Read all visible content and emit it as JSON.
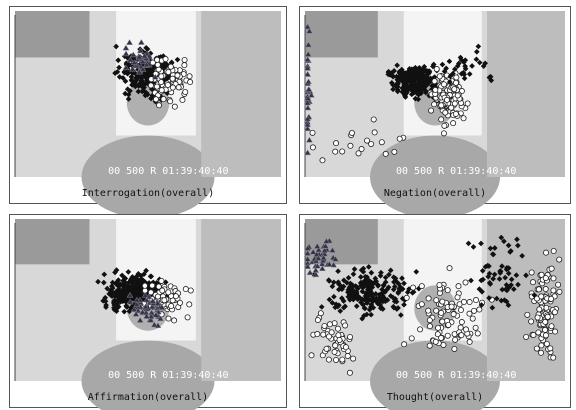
{
  "panels": [
    {
      "caption": "Interrogation(overall)"
    },
    {
      "caption": "Negation(overall)"
    },
    {
      "caption": "Affirmation(overall)"
    },
    {
      "caption": "Thought(overall)"
    }
  ],
  "timestamp": "00 500 R 01:39:40:40"
}
